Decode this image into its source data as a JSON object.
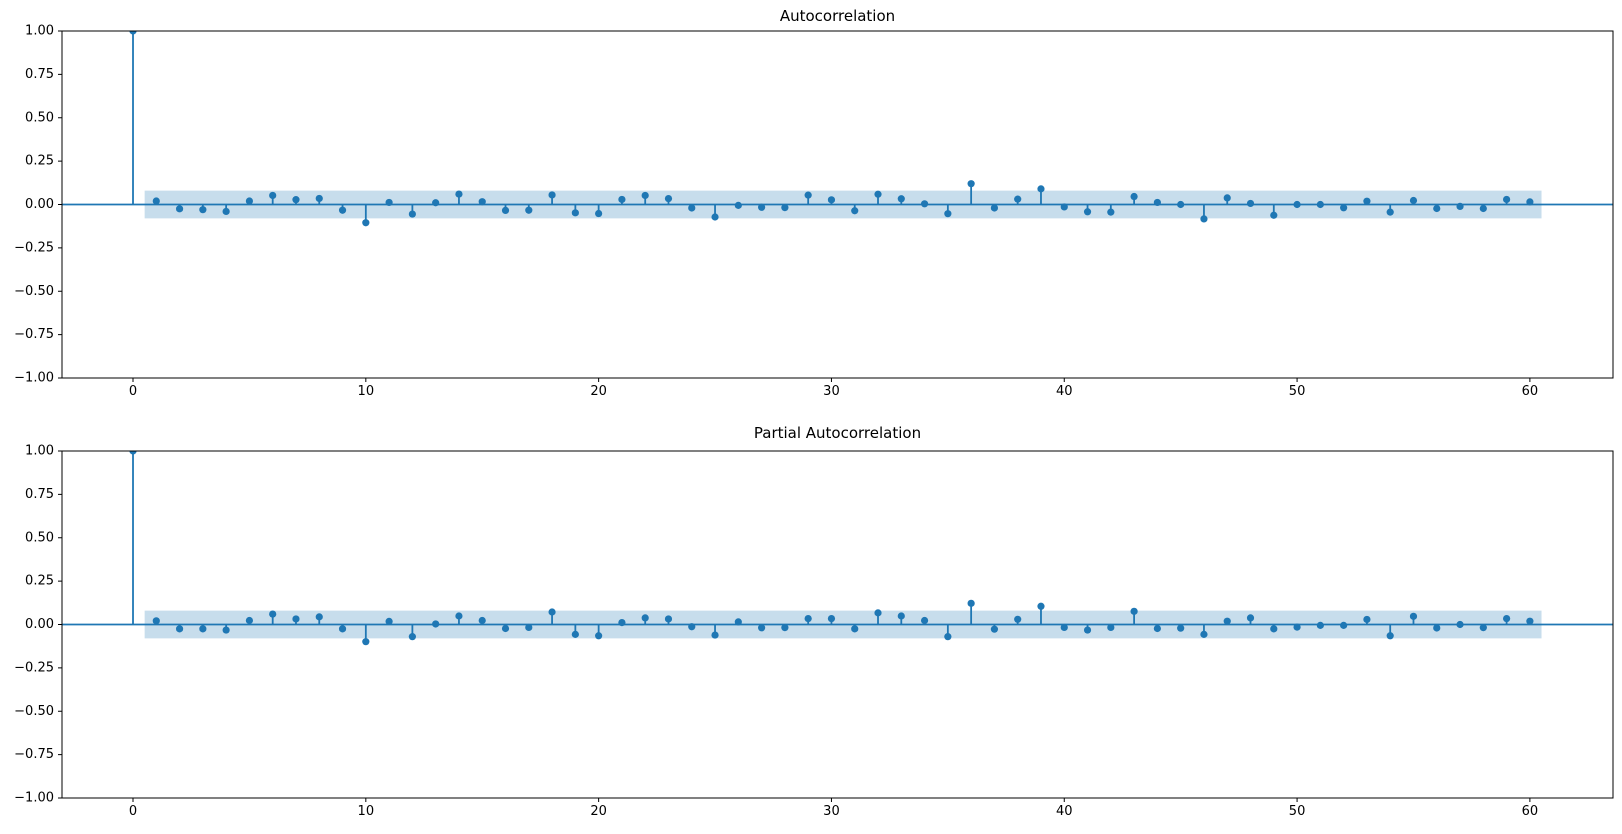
{
  "figure": {
    "background": "#ffffff",
    "text_color": "#000000",
    "spine_color": "#000000",
    "accent_color": "#1f77b4"
  },
  "chart_data": [
    {
      "name": "acf",
      "type": "stem",
      "title": "Autocorrelation",
      "lags": [
        0,
        1,
        2,
        3,
        4,
        5,
        6,
        7,
        8,
        9,
        10,
        11,
        12,
        13,
        14,
        15,
        16,
        17,
        18,
        19,
        20,
        21,
        22,
        23,
        24,
        25,
        26,
        27,
        28,
        29,
        30,
        31,
        32,
        33,
        34,
        35,
        36,
        37,
        38,
        39,
        40,
        41,
        42,
        43,
        44,
        45,
        46,
        47,
        48,
        49,
        50,
        51,
        52,
        53,
        54,
        55,
        56,
        57,
        58,
        59,
        60
      ],
      "values": [
        1.0,
        0.02,
        -0.025,
        -0.03,
        -0.04,
        0.02,
        0.052,
        0.028,
        0.035,
        -0.033,
        -0.105,
        0.012,
        -0.055,
        0.01,
        0.06,
        0.016,
        -0.034,
        -0.033,
        0.055,
        -0.048,
        -0.052,
        0.029,
        0.052,
        0.034,
        -0.02,
        -0.072,
        -0.005,
        -0.016,
        -0.018,
        0.054,
        0.027,
        -0.036,
        0.059,
        0.033,
        0.004,
        -0.053,
        0.12,
        -0.02,
        0.031,
        0.09,
        -0.014,
        -0.042,
        -0.044,
        0.046,
        0.012,
        0.0,
        -0.083,
        0.038,
        0.006,
        -0.062,
        0.0,
        0.0,
        -0.019,
        0.019,
        -0.044,
        0.023,
        -0.023,
        -0.011,
        -0.023,
        0.029,
        0.015
      ],
      "confidence_band": {
        "upper": 0.08,
        "lower": -0.08,
        "x_start": 0.5,
        "x_end": 60.5
      },
      "xlim": [
        -3.05,
        63.57
      ],
      "ylim": [
        -1.0,
        1.0
      ],
      "xticks": [
        0,
        10,
        20,
        30,
        40,
        50,
        60
      ],
      "xtick_labels": [
        "0",
        "10",
        "20",
        "30",
        "40",
        "50",
        "60"
      ],
      "yticks": [
        1.0,
        0.75,
        0.5,
        0.25,
        0.0,
        -0.25,
        -0.5,
        -0.75,
        -1.0
      ],
      "ytick_labels": [
        "1.00",
        "0.75",
        "0.50",
        "0.25",
        "0.00",
        "−0.25",
        "−0.50",
        "−0.75",
        "−1.00"
      ],
      "grid": false,
      "legend": null,
      "line_color": "#1f77b4",
      "marker_color": "#1f77b4",
      "band_color": "rgba(31,119,180,0.25)"
    },
    {
      "name": "pacf",
      "type": "stem",
      "title": "Partial Autocorrelation",
      "lags": [
        0,
        1,
        2,
        3,
        4,
        5,
        6,
        7,
        8,
        9,
        10,
        11,
        12,
        13,
        14,
        15,
        16,
        17,
        18,
        19,
        20,
        21,
        22,
        23,
        24,
        25,
        26,
        27,
        28,
        29,
        30,
        31,
        32,
        33,
        34,
        35,
        36,
        37,
        38,
        39,
        40,
        41,
        42,
        43,
        44,
        45,
        46,
        47,
        48,
        49,
        50,
        51,
        52,
        53,
        54,
        55,
        56,
        57,
        58,
        59,
        60
      ],
      "values": [
        1.0,
        0.021,
        -0.025,
        -0.025,
        -0.032,
        0.023,
        0.06,
        0.032,
        0.044,
        -0.025,
        -0.099,
        0.018,
        -0.07,
        0.003,
        0.049,
        0.023,
        -0.023,
        -0.017,
        0.072,
        -0.057,
        -0.065,
        0.011,
        0.038,
        0.032,
        -0.013,
        -0.061,
        0.015,
        -0.019,
        -0.018,
        0.034,
        0.034,
        -0.025,
        0.067,
        0.049,
        0.023,
        -0.07,
        0.122,
        -0.027,
        0.03,
        0.105,
        -0.017,
        -0.032,
        -0.017,
        0.076,
        -0.023,
        -0.021,
        -0.057,
        0.019,
        0.038,
        -0.025,
        -0.015,
        -0.005,
        -0.005,
        0.029,
        -0.065,
        0.047,
        -0.02,
        0.0,
        -0.018,
        0.034,
        0.019
      ],
      "confidence_band": {
        "upper": 0.08,
        "lower": -0.08,
        "x_start": 0.5,
        "x_end": 60.5
      },
      "xlim": [
        -3.05,
        63.57
      ],
      "ylim": [
        -1.0,
        1.0
      ],
      "xticks": [
        0,
        10,
        20,
        30,
        40,
        50,
        60
      ],
      "xtick_labels": [
        "0",
        "10",
        "20",
        "30",
        "40",
        "50",
        "60"
      ],
      "yticks": [
        1.0,
        0.75,
        0.5,
        0.25,
        0.0,
        -0.25,
        -0.5,
        -0.75,
        -1.0
      ],
      "ytick_labels": [
        "1.00",
        "0.75",
        "0.50",
        "0.25",
        "0.00",
        "−0.25",
        "−0.50",
        "−0.75",
        "−1.00"
      ],
      "grid": false,
      "legend": null,
      "line_color": "#1f77b4",
      "marker_color": "#1f77b4",
      "band_color": "rgba(31,119,180,0.25)"
    }
  ]
}
